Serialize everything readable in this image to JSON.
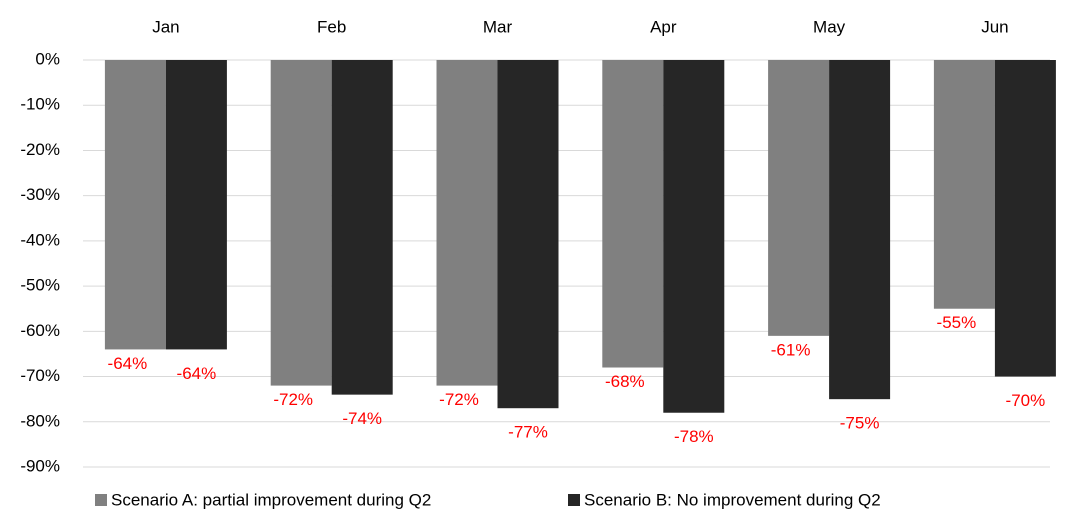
{
  "chart_data": {
    "type": "bar",
    "categories": [
      "Jan",
      "Feb",
      "Mar",
      "Apr",
      "May",
      "Jun"
    ],
    "series": [
      {
        "name": "Scenario A: partial improvement during Q2",
        "color": "#808080",
        "values": [
          -64,
          -72,
          -72,
          -68,
          -61,
          -55
        ],
        "value_labels": [
          "-64%",
          "-72%",
          "-72%",
          "-68%",
          "-61%",
          "-55%"
        ]
      },
      {
        "name": "Scenario B: No improvement during Q2",
        "color": "#262626",
        "values": [
          -64,
          -74,
          -77,
          -78,
          -75,
          -70
        ],
        "value_labels": [
          "-64%",
          "-74%",
          "-77%",
          "-78%",
          "-75%",
          "-70%"
        ]
      }
    ],
    "ylim": [
      -90,
      0
    ],
    "yticks": [
      {
        "value": 0,
        "label": "0%"
      },
      {
        "value": -10,
        "label": "-10%"
      },
      {
        "value": -20,
        "label": "-20%"
      },
      {
        "value": -30,
        "label": "-30%"
      },
      {
        "value": -40,
        "label": "-40%"
      },
      {
        "value": -50,
        "label": "-50%"
      },
      {
        "value": -60,
        "label": "-60%"
      },
      {
        "value": -70,
        "label": "-70%"
      },
      {
        "value": -80,
        "label": "-80%"
      },
      {
        "value": -90,
        "label": "-90%"
      }
    ],
    "grid": true,
    "legend": "bottom",
    "value_label_color": "#ff0000"
  }
}
